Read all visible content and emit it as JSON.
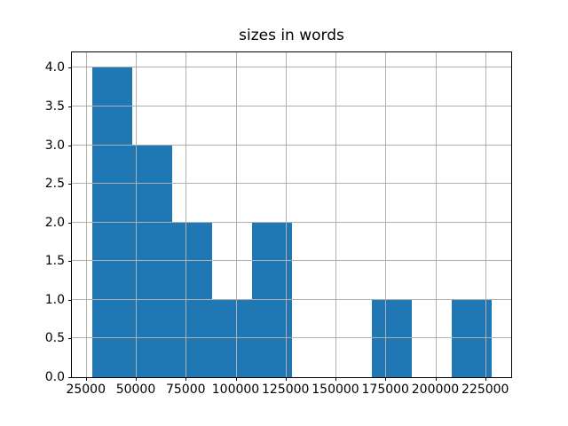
{
  "figure": {
    "background": "#ffffff"
  },
  "chart_data": {
    "type": "bar",
    "subtype": "histogram",
    "title": "sizes in words",
    "xlabel": "",
    "ylabel": "",
    "bin_edges": [
      28000,
      48000,
      68000,
      88000,
      108000,
      128000,
      148000,
      168000,
      188000,
      208000,
      228000
    ],
    "counts": [
      4,
      3,
      2,
      1,
      2,
      0,
      0,
      1,
      0,
      1
    ],
    "xlim": [
      18000,
      238000
    ],
    "ylim": [
      0,
      4.2
    ],
    "xticks": [
      25000,
      50000,
      75000,
      100000,
      125000,
      150000,
      175000,
      200000,
      225000
    ],
    "xtick_labels": [
      "25000",
      "50000",
      "75000",
      "100000",
      "125000",
      "150000",
      "175000",
      "200000",
      "225000"
    ],
    "yticks": [
      0,
      0.5,
      1,
      1.5,
      2,
      2.5,
      3,
      3.5,
      4
    ],
    "ytick_labels": [
      "0.0",
      "0.5",
      "1.0",
      "1.5",
      "2.0",
      "2.5",
      "3.0",
      "3.5",
      "4.0"
    ],
    "grid": true,
    "legend": false,
    "colors": {
      "bar": "#1f77b4",
      "grid": "#b0b0b0",
      "spine": "#000000",
      "text": "#000000",
      "background": "#ffffff"
    }
  }
}
